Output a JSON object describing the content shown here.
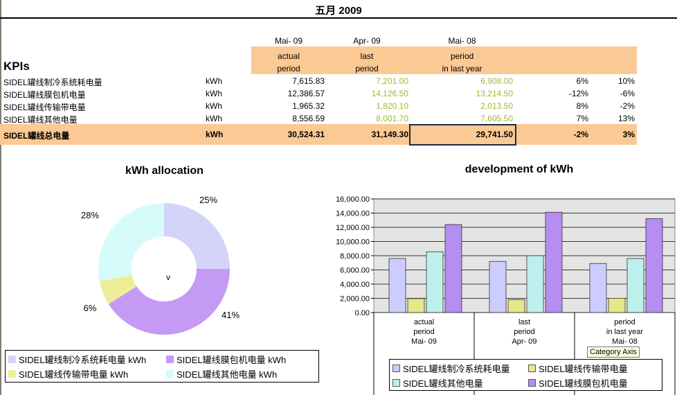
{
  "title": "五月 2009",
  "kpi": {
    "heading": "KPIs",
    "col_dates": [
      "Mai- 09",
      "Apr- 09",
      "Mai- 08"
    ],
    "col_labels": [
      [
        "actual",
        "period"
      ],
      [
        "last",
        "period"
      ],
      [
        "period",
        "in last year"
      ]
    ],
    "rows": [
      {
        "name": "SIDEL罐线制冷系统耗电量",
        "unit": "kWh",
        "actual": "7,615.83",
        "last": "7,201.00",
        "last_year": "6,908.00",
        "d1": "6%",
        "d2": "10%"
      },
      {
        "name": "SIDEL罐线膜包机电量",
        "unit": "kWh",
        "actual": "12,386.57",
        "last": "14,126.50",
        "last_year": "13,214.50",
        "d1": "-12%",
        "d2": "-6%"
      },
      {
        "name": "SIDEL罐线传输带电量",
        "unit": "kWh",
        "actual": "1,965.32",
        "last": "1,820.10",
        "last_year": "2,013.50",
        "d1": "8%",
        "d2": "-2%"
      },
      {
        "name": "SIDEL罐线其他电量",
        "unit": "kWh",
        "actual": "8,556.59",
        "last": "8,001.70",
        "last_year": "7,605.50",
        "d1": "7%",
        "d2": "13%"
      }
    ],
    "total": {
      "name": "SIDEL罐线总电量",
      "unit": "kWh",
      "actual": "30,524.31",
      "last": "31,149.30",
      "last_year": "29,741.50",
      "d1": "-2%",
      "d2": "3%"
    }
  },
  "chart_data": [
    {
      "type": "pie",
      "title": "kWh allocation",
      "center_label": "v",
      "slices": [
        {
          "label": "SIDEL罐线制冷系统耗电量 kWh",
          "value": 25,
          "text": "25%",
          "color": "#d4d4fa"
        },
        {
          "label": "SIDEL罐线膜包机电量 kWh",
          "value": 41,
          "text": "41%",
          "color": "#c49af5"
        },
        {
          "label": "SIDEL罐线传输带电量 kWh",
          "value": 6,
          "text": "6%",
          "color": "#eeee99"
        },
        {
          "label": "SIDEL罐线其他电量 kWh",
          "value": 28,
          "text": "28%",
          "color": "#d6fbfb"
        }
      ]
    },
    {
      "type": "bar",
      "title": "development of kWh",
      "categories": [
        [
          "actual",
          "period",
          "Mai- 09"
        ],
        [
          "last",
          "period",
          "Apr- 09"
        ],
        [
          "period",
          "in last year",
          "Mai- 08"
        ]
      ],
      "ylim": [
        0,
        16000
      ],
      "yticks": [
        "0.00",
        "2,000.00",
        "4,000.00",
        "6,000.00",
        "8,000.00",
        "10,000.00",
        "12,000.00",
        "14,000.00",
        "16,000.00"
      ],
      "series": [
        {
          "name": "SIDEL罐线制冷系统耗电量",
          "values": [
            7615.83,
            7201.0,
            6908.0
          ],
          "color": "#ccccff"
        },
        {
          "name": "SIDEL罐线传输带电量",
          "values": [
            1965.32,
            1820.1,
            2013.5
          ],
          "color": "#e6e68a"
        },
        {
          "name": "SIDEL罐线其他电量",
          "values": [
            8556.59,
            8001.7,
            7605.5
          ],
          "color": "#bdf0ec"
        },
        {
          "name": "SIDEL罐线膜包机电量",
          "values": [
            12386.57,
            14126.5,
            13214.5
          ],
          "color": "#b48ef0"
        }
      ],
      "tooltip": "Category Axis"
    }
  ]
}
